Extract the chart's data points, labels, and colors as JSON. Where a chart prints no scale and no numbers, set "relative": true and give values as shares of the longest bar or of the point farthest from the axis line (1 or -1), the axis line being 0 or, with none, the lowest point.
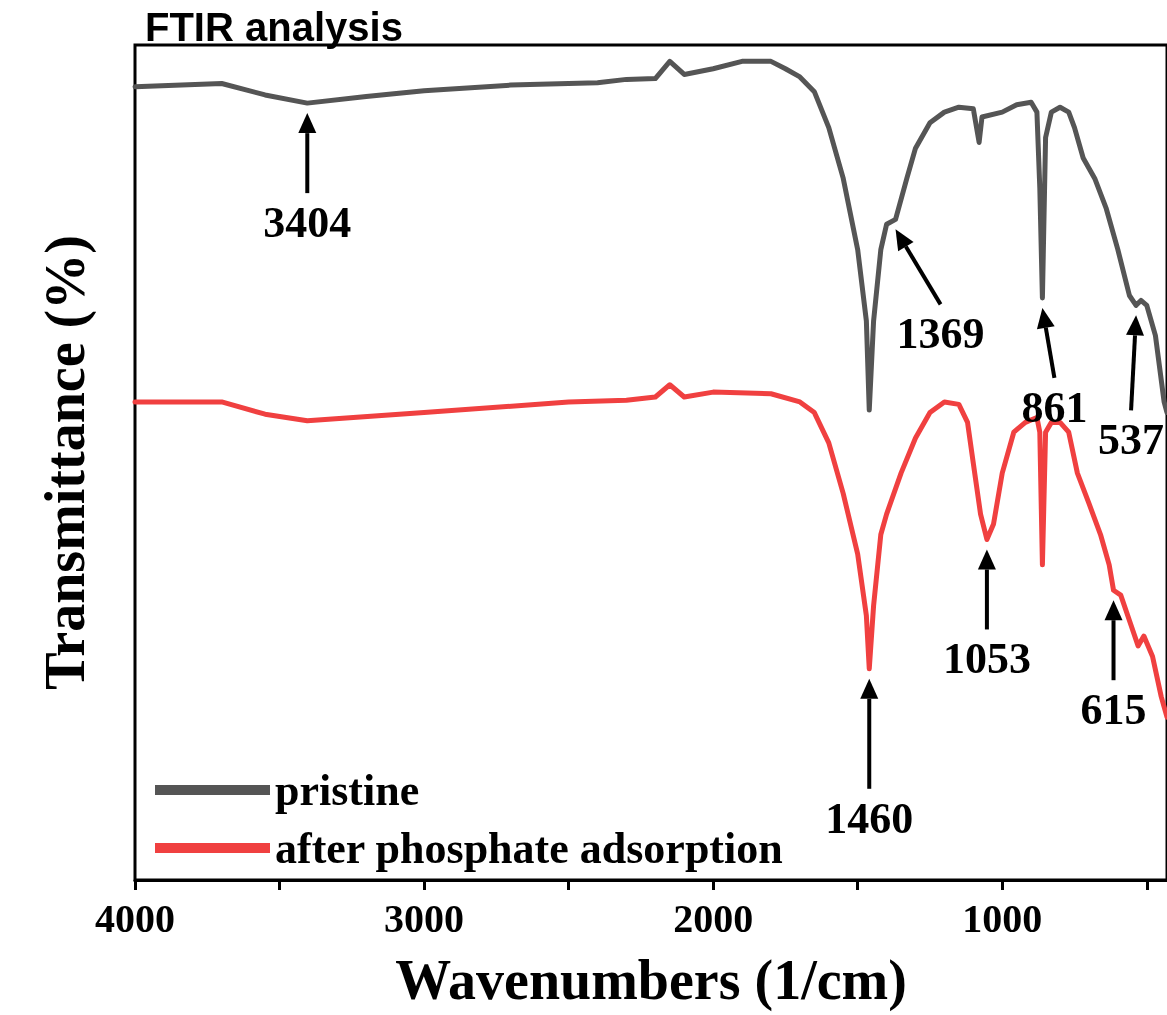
{
  "chart_data": {
    "type": "line",
    "title": "FTIR analysis",
    "xlabel": "Wavenumbers (1/cm)",
    "ylabel": "Transmittance (%)",
    "relative": true,
    "grid": false,
    "legend": "bottom left",
    "marker": "none",
    "line_style": "solid",
    "xlim": [
      4000,
      430
    ],
    "xticks": [
      4000,
      {
        "value": 3500,
        "label": null
      },
      3000,
      {
        "value": 2500,
        "label": null
      },
      2000,
      {
        "value": 1500,
        "label": null
      },
      1000,
      {
        "value": 500,
        "label": null
      }
    ],
    "series": [
      {
        "name": "pristine",
        "color": "#555555",
        "x": [
          4000,
          3700,
          3550,
          3404,
          3200,
          3000,
          2700,
          2400,
          2300,
          2200,
          2150,
          2100,
          2000,
          1900,
          1800,
          1750,
          1700,
          1650,
          1600,
          1550,
          1500,
          1470,
          1460,
          1445,
          1420,
          1400,
          1369,
          1330,
          1300,
          1250,
          1200,
          1150,
          1100,
          1080,
          1070,
          1000,
          950,
          900,
          880,
          870,
          861,
          850,
          830,
          800,
          770,
          750,
          720,
          680,
          640,
          600,
          560,
          537,
          520,
          500,
          470,
          440,
          430
        ],
        "values": [
          0.969,
          0.973,
          0.959,
          0.949,
          0.957,
          0.964,
          0.971,
          0.974,
          0.978,
          0.979,
          1,
          0.984,
          0.991,
          1,
          1,
          0.991,
          0.981,
          0.963,
          0.919,
          0.857,
          0.77,
          0.683,
          0.574,
          0.683,
          0.77,
          0.801,
          0.807,
          0.857,
          0.894,
          0.925,
          0.938,
          0.944,
          0.942,
          0.901,
          0.932,
          0.938,
          0.947,
          0.95,
          0.938,
          0.845,
          0.711,
          0.907,
          0.938,
          0.944,
          0.938,
          0.919,
          0.882,
          0.857,
          0.82,
          0.77,
          0.714,
          0.702,
          0.708,
          0.702,
          0.665,
          0.584,
          0.571
        ]
      },
      {
        "name": "after phosphate adsorption",
        "color": "#f04040",
        "x": [
          4000,
          3700,
          3550,
          3404,
          3000,
          2500,
          2300,
          2200,
          2150,
          2100,
          2000,
          1800,
          1700,
          1650,
          1600,
          1550,
          1500,
          1470,
          1460,
          1445,
          1420,
          1400,
          1350,
          1300,
          1250,
          1200,
          1150,
          1120,
          1100,
          1075,
          1053,
          1030,
          1000,
          960,
          920,
          880,
          870,
          861,
          850,
          830,
          800,
          770,
          740,
          700,
          660,
          630,
          615,
          590,
          560,
          530,
          510,
          480,
          450,
          430
        ],
        "values": [
          0.584,
          0.584,
          0.569,
          0.561,
          0.571,
          0.584,
          0.586,
          0.59,
          0.605,
          0.59,
          0.596,
          0.594,
          0.584,
          0.571,
          0.534,
          0.472,
          0.398,
          0.323,
          0.258,
          0.335,
          0.422,
          0.447,
          0.497,
          0.54,
          0.571,
          0.584,
          0.581,
          0.559,
          0.509,
          0.447,
          0.416,
          0.435,
          0.497,
          0.547,
          0.559,
          0.565,
          0.547,
          0.385,
          0.547,
          0.559,
          0.559,
          0.547,
          0.497,
          0.46,
          0.422,
          0.385,
          0.354,
          0.348,
          0.317,
          0.286,
          0.298,
          0.273,
          0.224,
          0.199
        ]
      }
    ],
    "annotations": [
      {
        "text": "3404",
        "x": 3404,
        "y": 0.949
      },
      {
        "text": "1369",
        "x": 1369,
        "y": 0.807
      },
      {
        "text": "861",
        "x": 861,
        "y": 0.711
      },
      {
        "text": "537",
        "x": 537,
        "y": 0.702
      },
      {
        "text": "1460",
        "x": 1460,
        "y": 0.258
      },
      {
        "text": "1053",
        "x": 1053,
        "y": 0.416
      },
      {
        "text": "615",
        "x": 615,
        "y": 0.354
      }
    ]
  }
}
